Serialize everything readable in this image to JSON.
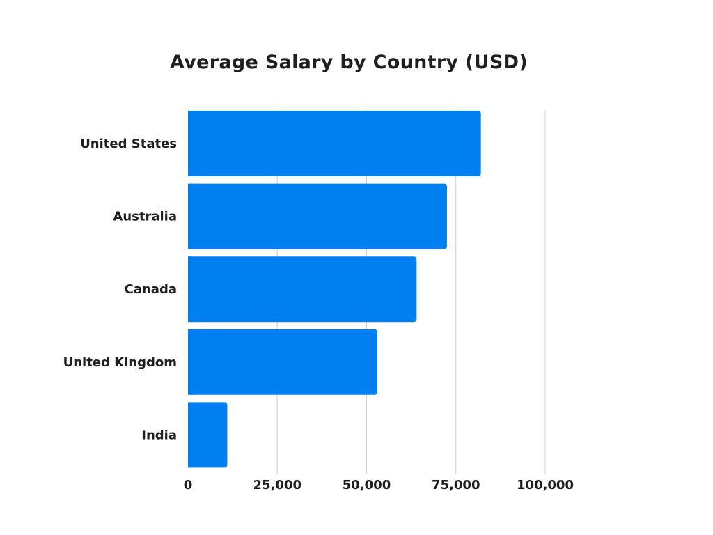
{
  "chart_data": {
    "type": "bar",
    "orientation": "horizontal",
    "title": "Average Salary by Country (USD)",
    "xlabel": "",
    "ylabel": "",
    "categories": [
      "United States",
      "Australia",
      "Canada",
      "United Kingdom",
      "India"
    ],
    "values": [
      82000,
      72500,
      64000,
      53000,
      11000
    ],
    "xlim": [
      0,
      100000
    ],
    "xticks": [
      0,
      25000,
      50000,
      75000,
      100000
    ],
    "xtick_labels": [
      "0",
      "25,000",
      "50,000",
      "75,000",
      "100,000"
    ],
    "grid": "vertical",
    "legend": "none",
    "bar_color": "#0080f0",
    "grid_color": "#d0d0d0",
    "text_color": "#1f1f1f"
  }
}
